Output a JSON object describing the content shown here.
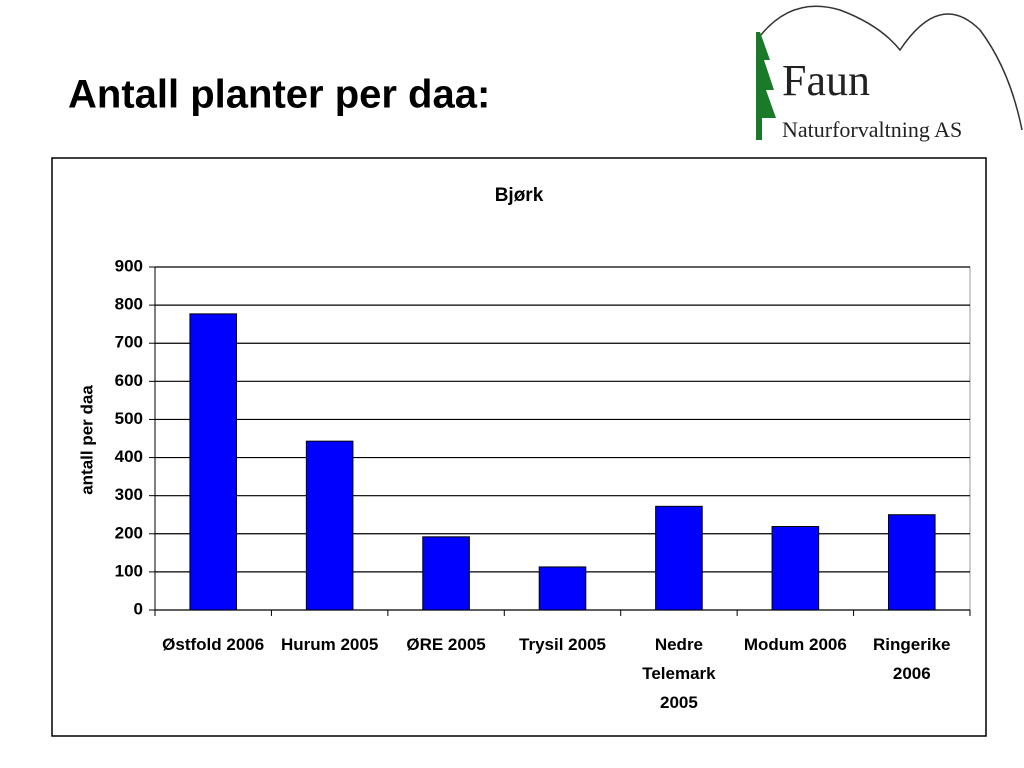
{
  "slide_title": "Antall planter per daa:",
  "logo": {
    "name": "Faun",
    "subtitle": "Naturforvaltning AS"
  },
  "chart_data": {
    "type": "bar",
    "title": "Bjørk",
    "y_label": "antall per daa",
    "categories": [
      "Østfold 2006",
      "Hurum 2005",
      "ØRE 2005",
      "Trysil 2005",
      "Nedre Telemark 2005",
      "Modum 2006",
      "Ringerike 2006"
    ],
    "values": [
      777,
      443,
      192,
      113,
      272,
      219,
      250
    ],
    "color": "#0000ff",
    "ylim": [
      0,
      900
    ],
    "yticks": [
      0,
      100,
      200,
      300,
      400,
      500,
      600,
      700,
      800,
      900
    ],
    "grid": true
  }
}
